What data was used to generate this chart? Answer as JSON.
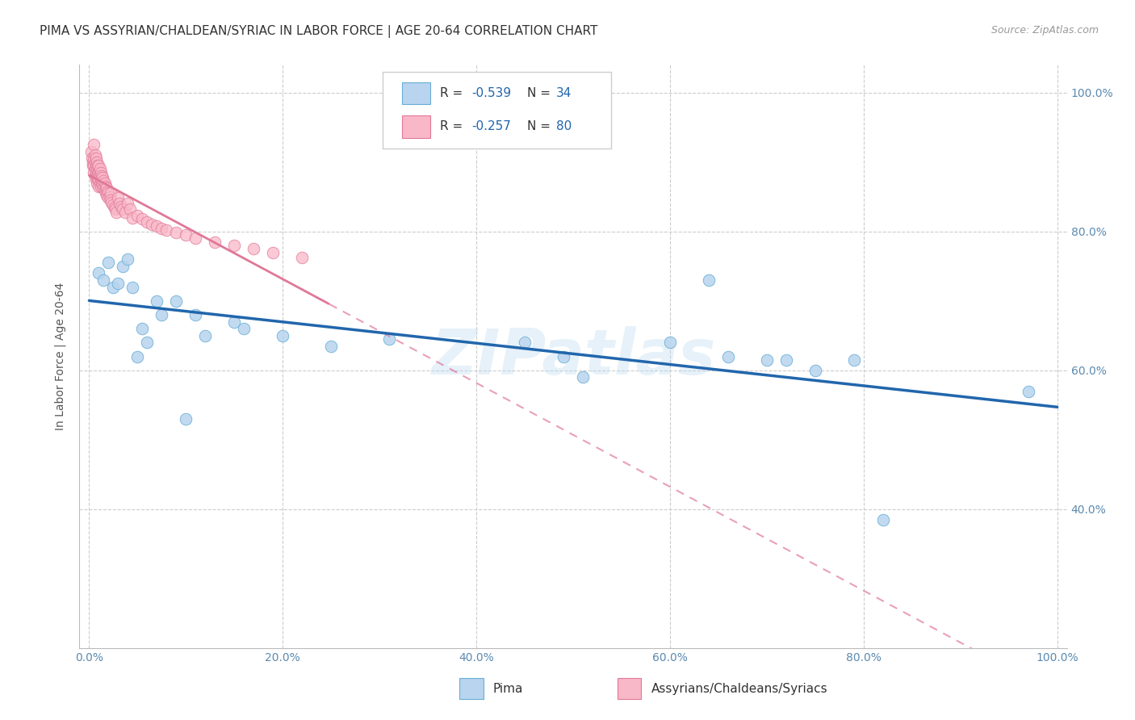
{
  "title": "PIMA VS ASSYRIAN/CHALDEAN/SYRIAC IN LABOR FORCE | AGE 20-64 CORRELATION CHART",
  "source": "Source: ZipAtlas.com",
  "ylabel": "In Labor Force | Age 20-64",
  "xlim": [
    -0.01,
    1.01
  ],
  "ylim": [
    0.2,
    1.04
  ],
  "x_ticks": [
    0.0,
    0.2,
    0.4,
    0.6,
    0.8,
    1.0
  ],
  "y_ticks": [
    0.4,
    0.6,
    0.8,
    1.0
  ],
  "x_tick_labels": [
    "0.0%",
    "20.0%",
    "40.0%",
    "60.0%",
    "80.0%",
    "100.0%"
  ],
  "y_tick_labels_right": [
    "40.0%",
    "60.0%",
    "80.0%",
    "100.0%"
  ],
  "legend_label1": "Pima",
  "legend_label2": "Assyrians/Chaldeans/Syriacs",
  "R1": -0.539,
  "N1": 34,
  "R2": -0.257,
  "N2": 80,
  "color_pima_fill": "#b8d4ee",
  "color_pima_edge": "#6aaed6",
  "color_assyrian_fill": "#f9b8c8",
  "color_assyrian_edge": "#e07898",
  "color_pima_line": "#2166ac",
  "color_assyrian_line": "#e07898",
  "background_color": "#ffffff",
  "grid_color": "#cccccc",
  "title_fontsize": 11,
  "axis_label_fontsize": 10,
  "tick_fontsize": 10,
  "tick_color": "#5b8ab0",
  "pima_x": [
    0.01,
    0.015,
    0.02,
    0.025,
    0.03,
    0.035,
    0.04,
    0.045,
    0.05,
    0.055,
    0.06,
    0.07,
    0.075,
    0.09,
    0.1,
    0.11,
    0.12,
    0.15,
    0.16,
    0.2,
    0.25,
    0.31,
    0.45,
    0.49,
    0.51,
    0.6,
    0.64,
    0.66,
    0.7,
    0.72,
    0.75,
    0.79,
    0.82,
    0.97
  ],
  "pima_y": [
    0.74,
    0.73,
    0.755,
    0.72,
    0.725,
    0.75,
    0.76,
    0.72,
    0.62,
    0.66,
    0.64,
    0.7,
    0.68,
    0.7,
    0.53,
    0.68,
    0.65,
    0.67,
    0.66,
    0.65,
    0.635,
    0.645,
    0.64,
    0.62,
    0.59,
    0.64,
    0.73,
    0.62,
    0.615,
    0.615,
    0.6,
    0.615,
    0.385,
    0.57
  ],
  "assyrian_x": [
    0.002,
    0.003,
    0.004,
    0.004,
    0.005,
    0.005,
    0.005,
    0.005,
    0.006,
    0.006,
    0.006,
    0.006,
    0.007,
    0.007,
    0.007,
    0.007,
    0.008,
    0.008,
    0.008,
    0.008,
    0.009,
    0.009,
    0.009,
    0.01,
    0.01,
    0.01,
    0.01,
    0.01,
    0.011,
    0.011,
    0.011,
    0.012,
    0.012,
    0.012,
    0.013,
    0.013,
    0.014,
    0.014,
    0.015,
    0.015,
    0.016,
    0.016,
    0.017,
    0.017,
    0.018,
    0.018,
    0.019,
    0.02,
    0.02,
    0.021,
    0.022,
    0.022,
    0.023,
    0.025,
    0.026,
    0.027,
    0.028,
    0.03,
    0.031,
    0.033,
    0.035,
    0.037,
    0.04,
    0.042,
    0.045,
    0.05,
    0.055,
    0.06,
    0.065,
    0.07,
    0.075,
    0.08,
    0.09,
    0.1,
    0.11,
    0.13,
    0.15,
    0.17,
    0.19,
    0.22
  ],
  "assyrian_y": [
    0.915,
    0.905,
    0.9,
    0.895,
    0.925,
    0.905,
    0.895,
    0.885,
    0.91,
    0.9,
    0.89,
    0.88,
    0.905,
    0.895,
    0.885,
    0.875,
    0.9,
    0.89,
    0.88,
    0.87,
    0.895,
    0.885,
    0.875,
    0.895,
    0.885,
    0.88,
    0.875,
    0.865,
    0.89,
    0.88,
    0.87,
    0.885,
    0.875,
    0.865,
    0.88,
    0.87,
    0.878,
    0.868,
    0.873,
    0.863,
    0.87,
    0.86,
    0.865,
    0.855,
    0.862,
    0.852,
    0.858,
    0.856,
    0.848,
    0.85,
    0.856,
    0.845,
    0.842,
    0.838,
    0.835,
    0.832,
    0.828,
    0.848,
    0.84,
    0.836,
    0.832,
    0.828,
    0.84,
    0.832,
    0.82,
    0.823,
    0.818,
    0.814,
    0.81,
    0.808,
    0.804,
    0.802,
    0.798,
    0.795,
    0.79,
    0.785,
    0.78,
    0.775,
    0.77,
    0.762
  ]
}
